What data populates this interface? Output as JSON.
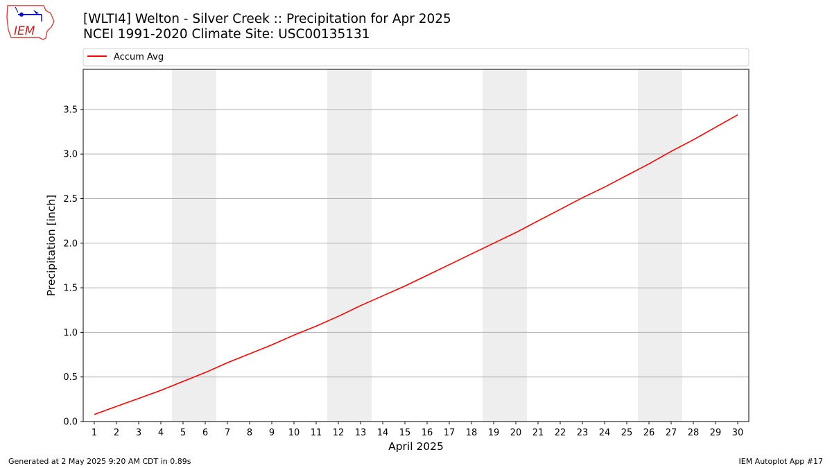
{
  "header": {
    "title_line1": "[WLTI4] Welton - Silver Creek :: Precipitation for Apr 2025",
    "title_line2": "NCEI 1991-2020 Climate Site: USC00135131",
    "logo_text": "IEM"
  },
  "footer": {
    "generated": "Generated at 2 May 2025 9:20 AM CDT in 0.89s",
    "app": "IEM Autoplot App #17"
  },
  "colors": {
    "series": "#ff0000",
    "weekend_shade": "#eeeeee",
    "grid": "#b0b0b0"
  },
  "chart_data": {
    "type": "line",
    "xlabel": "April 2025",
    "ylabel": "Precipitation [inch]",
    "xlim": [
      0.5,
      30.5
    ],
    "ylim": [
      0,
      3.95
    ],
    "x_ticks": [
      1,
      2,
      3,
      4,
      5,
      6,
      7,
      8,
      9,
      10,
      11,
      12,
      13,
      14,
      15,
      16,
      17,
      18,
      19,
      20,
      21,
      22,
      23,
      24,
      25,
      26,
      27,
      28,
      29,
      30
    ],
    "y_ticks": [
      0.0,
      0.5,
      1.0,
      1.5,
      2.0,
      2.5,
      3.0,
      3.5
    ],
    "y_tick_labels": [
      "0.0",
      "0.5",
      "1.0",
      "1.5",
      "2.0",
      "2.5",
      "3.0",
      "3.5"
    ],
    "grid": "horizontal",
    "legend_placement": "top, above plot",
    "shaded_day_ranges": [
      [
        5,
        6
      ],
      [
        12,
        13
      ],
      [
        19,
        20
      ],
      [
        26,
        27
      ]
    ],
    "series": [
      {
        "name": "Accum Avg",
        "color": "#ff0000",
        "x": [
          1,
          2,
          3,
          4,
          5,
          6,
          7,
          8,
          9,
          10,
          11,
          12,
          13,
          14,
          15,
          16,
          17,
          18,
          19,
          20,
          21,
          22,
          23,
          24,
          25,
          26,
          27,
          28,
          29,
          30
        ],
        "values": [
          0.08,
          0.17,
          0.26,
          0.35,
          0.45,
          0.55,
          0.66,
          0.76,
          0.86,
          0.97,
          1.07,
          1.18,
          1.3,
          1.41,
          1.52,
          1.64,
          1.76,
          1.88,
          2.0,
          2.12,
          2.25,
          2.38,
          2.51,
          2.63,
          2.76,
          2.89,
          3.03,
          3.16,
          3.3,
          3.44
        ]
      }
    ]
  }
}
